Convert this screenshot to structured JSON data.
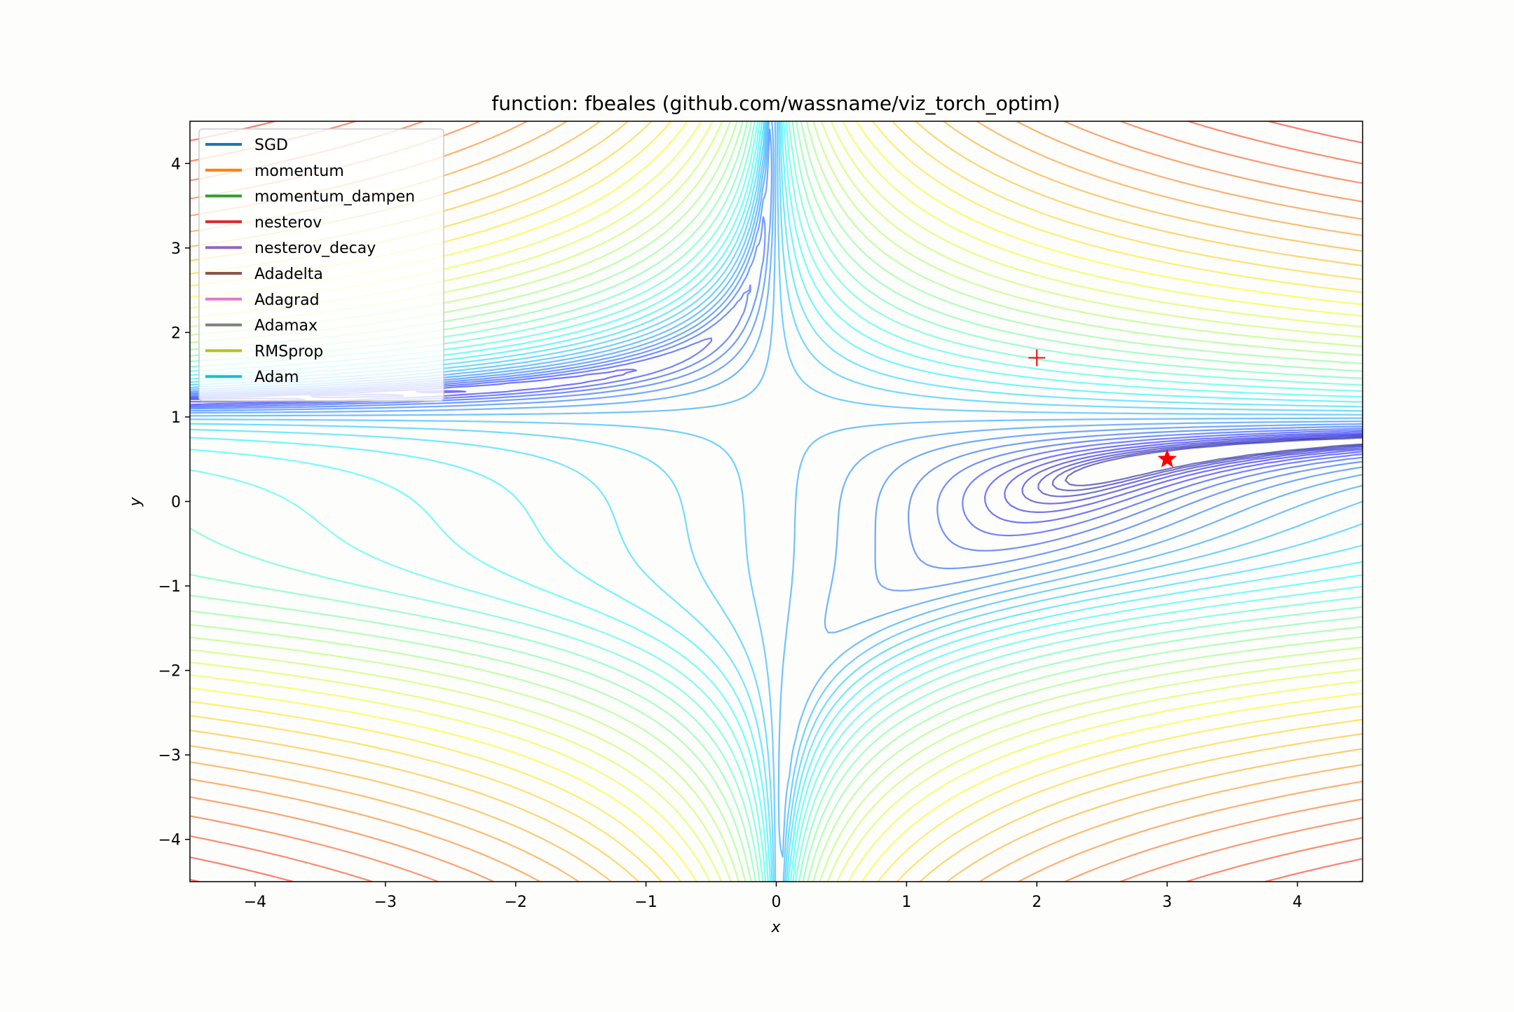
{
  "chart_data": {
    "type": "contour",
    "title": "function: fbeales (github.com/wassname/viz_torch_optim)",
    "xlabel": "x",
    "ylabel": "y",
    "xlim": [
      -4.5,
      4.5
    ],
    "ylim": [
      -4.5,
      4.5
    ],
    "x_ticks": [
      -4,
      -3,
      -2,
      -1,
      0,
      1,
      2,
      3,
      4
    ],
    "y_ticks": [
      -4,
      -3,
      -2,
      -1,
      0,
      1,
      2,
      3,
      4
    ],
    "x_tick_labels": [
      "−4",
      "−3",
      "−2",
      "−1",
      "0",
      "1",
      "2",
      "3",
      "4"
    ],
    "y_tick_labels": [
      "−4",
      "−3",
      "−2",
      "−1",
      "0",
      "1",
      "2",
      "3",
      "4"
    ],
    "grid": false,
    "colormap": "jet",
    "contour_levels": 40,
    "function": "fbeales",
    "legend": {
      "location": "upper-left",
      "entries": [
        {
          "name": "SGD",
          "color": "#1f77b4"
        },
        {
          "name": "momentum",
          "color": "#ff7f0e"
        },
        {
          "name": "momentum_dampen",
          "color": "#2ca02c"
        },
        {
          "name": "nesterov",
          "color": "#d62728"
        },
        {
          "name": "nesterov_decay",
          "color": "#9467bd"
        },
        {
          "name": "Adadelta",
          "color": "#8c564b"
        },
        {
          "name": "Adagrad",
          "color": "#e377c2"
        },
        {
          "name": "Adamax",
          "color": "#7f7f7f"
        },
        {
          "name": "RMSprop",
          "color": "#bcbd22"
        },
        {
          "name": "Adam",
          "color": "#17becf"
        }
      ]
    },
    "markers": [
      {
        "type": "plus",
        "x": 2.0,
        "y": 1.7,
        "color": "#ff0000"
      },
      {
        "type": "star",
        "x": 3.0,
        "y": 0.5,
        "color": "#ff0000"
      }
    ]
  }
}
